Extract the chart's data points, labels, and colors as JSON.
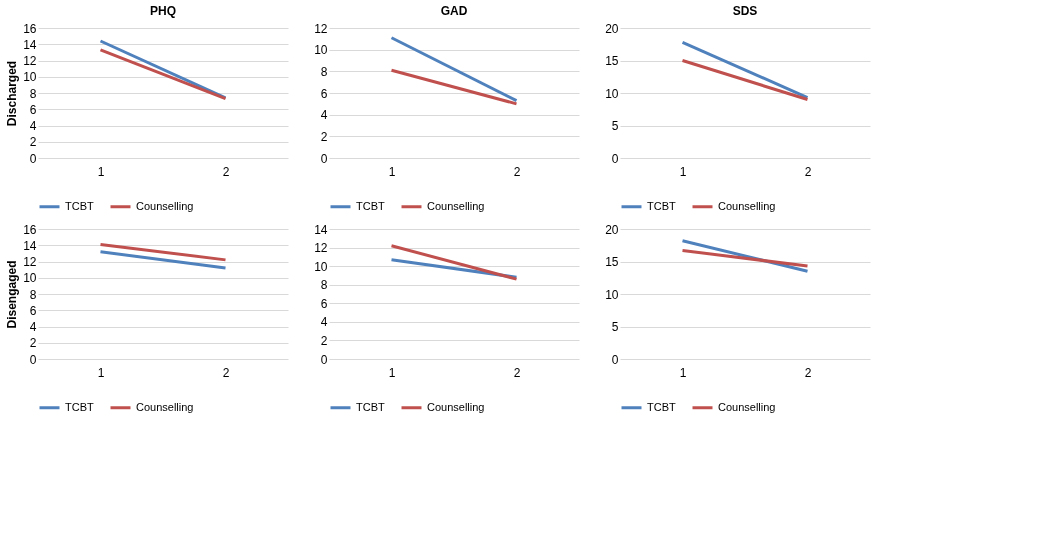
{
  "chart_data": [
    {
      "type": "line",
      "title": "PHQ",
      "ylabel": "Discharged",
      "categories": [
        "1",
        "2"
      ],
      "ylim": [
        0,
        16
      ],
      "yticks": [
        0,
        2,
        4,
        6,
        8,
        10,
        12,
        14,
        16
      ],
      "grid": "y",
      "legend": "bottom",
      "marker": "none",
      "line_style": "solid",
      "series": [
        {
          "name": "TCBT",
          "color": "#4f81bd",
          "values": [
            14.4,
            7.4
          ]
        },
        {
          "name": "Counselling",
          "color": "#c0504d",
          "values": [
            13.3,
            7.3
          ]
        }
      ]
    },
    {
      "type": "line",
      "title": "GAD",
      "categories": [
        "1",
        "2"
      ],
      "ylim": [
        0,
        12
      ],
      "yticks": [
        0,
        2,
        4,
        6,
        8,
        10,
        12
      ],
      "grid": "y",
      "legend": "bottom",
      "marker": "none",
      "line_style": "solid",
      "series": [
        {
          "name": "TCBT",
          "color": "#4f81bd",
          "values": [
            11.1,
            5.3
          ]
        },
        {
          "name": "Counselling",
          "color": "#c0504d",
          "values": [
            8.1,
            5.0
          ]
        }
      ]
    },
    {
      "type": "line",
      "title": "SDS",
      "categories": [
        "1",
        "2"
      ],
      "ylim": [
        0,
        20
      ],
      "yticks": [
        0,
        5,
        10,
        15,
        20
      ],
      "grid": "y",
      "legend": "bottom",
      "marker": "none",
      "line_style": "solid",
      "series": [
        {
          "name": "TCBT",
          "color": "#4f81bd",
          "values": [
            17.8,
            9.3
          ]
        },
        {
          "name": "Counselling",
          "color": "#c0504d",
          "values": [
            15.0,
            9.0
          ]
        }
      ]
    },
    {
      "type": "line",
      "ylabel": "Disengaged",
      "categories": [
        "1",
        "2"
      ],
      "ylim": [
        0,
        16
      ],
      "yticks": [
        0,
        2,
        4,
        6,
        8,
        10,
        12,
        14,
        16
      ],
      "grid": "y",
      "legend": "bottom",
      "marker": "none",
      "line_style": "solid",
      "series": [
        {
          "name": "TCBT",
          "color": "#4f81bd",
          "values": [
            13.2,
            11.2
          ]
        },
        {
          "name": "Counselling",
          "color": "#c0504d",
          "values": [
            14.1,
            12.2
          ]
        }
      ]
    },
    {
      "type": "line",
      "categories": [
        "1",
        "2"
      ],
      "ylim": [
        0,
        14
      ],
      "yticks": [
        0,
        2,
        4,
        6,
        8,
        10,
        12,
        14
      ],
      "grid": "y",
      "legend": "bottom",
      "marker": "none",
      "line_style": "solid",
      "series": [
        {
          "name": "TCBT",
          "color": "#4f81bd",
          "values": [
            10.7,
            8.8
          ]
        },
        {
          "name": "Counselling",
          "color": "#c0504d",
          "values": [
            12.2,
            8.6
          ]
        }
      ]
    },
    {
      "type": "line",
      "categories": [
        "1",
        "2"
      ],
      "ylim": [
        0,
        20
      ],
      "yticks": [
        0,
        5,
        10,
        15,
        20
      ],
      "grid": "y",
      "legend": "bottom",
      "marker": "none",
      "line_style": "solid",
      "series": [
        {
          "name": "TCBT",
          "color": "#4f81bd",
          "values": [
            18.2,
            13.5
          ]
        },
        {
          "name": "Counselling",
          "color": "#c0504d",
          "values": [
            16.7,
            14.3
          ]
        }
      ]
    }
  ]
}
